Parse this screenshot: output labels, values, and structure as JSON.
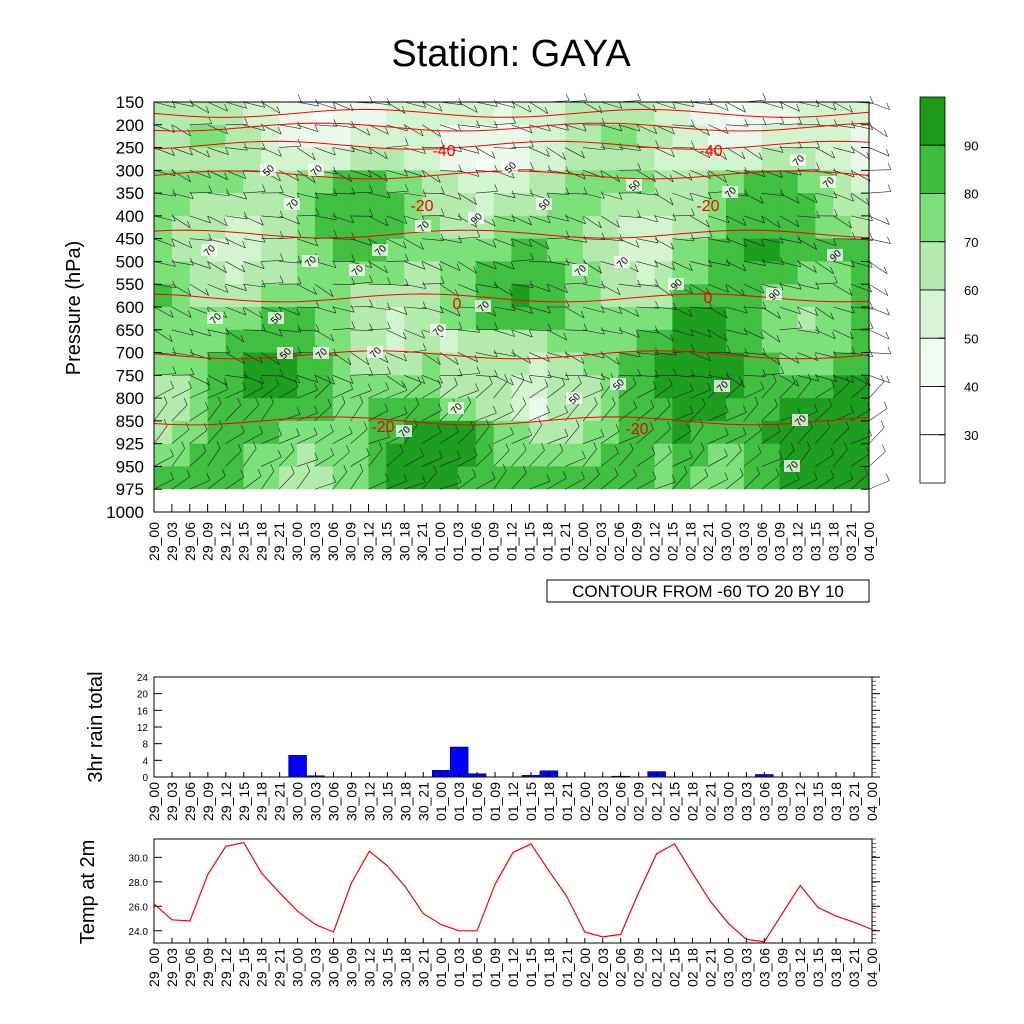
{
  "title": "Station: GAYA",
  "time_labels": [
    "29_00",
    "29_03",
    "29_06",
    "29_09",
    "29_12",
    "29_15",
    "29_18",
    "29_21",
    "30_00",
    "30_03",
    "30_06",
    "30_09",
    "30_12",
    "30_15",
    "30_18",
    "30_21",
    "01_00",
    "01_03",
    "01_06",
    "01_09",
    "01_12",
    "01_15",
    "01_18",
    "01_21",
    "02_00",
    "02_03",
    "02_06",
    "02_09",
    "02_12",
    "02_15",
    "02_18",
    "02_21",
    "03_00",
    "03_03",
    "03_06",
    "03_09",
    "03_12",
    "03_15",
    "03_18",
    "03_21",
    "04_00"
  ],
  "cross_section": {
    "ylabel": "Pressure (hPa)",
    "pressure_levels": [
      "150",
      "200",
      "250",
      "300",
      "350",
      "400",
      "450",
      "500",
      "550",
      "600",
      "650",
      "700",
      "750",
      "800",
      "850",
      "925",
      "950",
      "975",
      "1000"
    ],
    "contour_info": "CONTOUR FROM -60 TO 20 BY 10",
    "colorbar": {
      "labels": [
        "30",
        "40",
        "50",
        "60",
        "70",
        "80",
        "90"
      ],
      "colors": [
        "#ffffff",
        "#f0faf0",
        "#d7f4d4",
        "#b5ebae",
        "#7de07a",
        "#3dbd3d",
        "#199a19"
      ]
    },
    "humidity_labels": [
      "50",
      "70",
      "50",
      "70",
      "70",
      "50",
      "70",
      "50",
      "70",
      "70",
      "70",
      "70",
      "90",
      "70",
      "70",
      "70",
      "70",
      "90",
      "90",
      "90",
      "70",
      "70"
    ],
    "temperature_labels": [
      "-40",
      "-40",
      "-20",
      "-20",
      "0",
      "0",
      "-20",
      "-20"
    ],
    "line_color": "#ff0000"
  },
  "chart_data": [
    {
      "type": "bar",
      "ylabel": "3hr rain total",
      "ylim": [
        0,
        24
      ],
      "yticks": [
        "0",
        "4",
        "8",
        "12",
        "16",
        "20",
        "24"
      ],
      "bar_color": "#0000ff",
      "categories": [
        "29_00",
        "29_03",
        "29_06",
        "29_09",
        "29_12",
        "29_15",
        "29_18",
        "29_21",
        "30_00",
        "30_03",
        "30_06",
        "30_09",
        "30_12",
        "30_15",
        "30_18",
        "30_21",
        "01_00",
        "01_03",
        "01_06",
        "01_09",
        "01_12",
        "01_15",
        "01_18",
        "01_21",
        "02_00",
        "02_03",
        "02_06",
        "02_09",
        "02_12",
        "02_15",
        "02_18",
        "02_21",
        "03_00",
        "03_03",
        "03_06",
        "03_09",
        "03_12",
        "03_15",
        "03_18",
        "03_21",
        "04_00"
      ],
      "values": [
        0,
        0,
        0,
        0,
        0,
        0,
        0,
        0,
        5.2,
        0.3,
        0,
        0,
        0,
        0,
        0,
        0,
        1.6,
        7.2,
        0.8,
        0,
        0,
        0.4,
        1.5,
        0,
        0,
        0,
        0.2,
        0,
        1.3,
        0,
        0,
        0,
        0,
        0,
        0.6,
        0,
        0,
        0,
        0,
        0,
        0
      ]
    },
    {
      "type": "line",
      "ylabel": "Temp at 2m",
      "ylim": [
        23.0,
        31.5
      ],
      "yticks": [
        "24.0",
        "26.0",
        "28.0",
        "30.0"
      ],
      "line_color": "#ff0000",
      "categories": [
        "29_00",
        "29_03",
        "29_06",
        "29_09",
        "29_12",
        "29_15",
        "29_18",
        "29_21",
        "30_00",
        "30_03",
        "30_06",
        "30_09",
        "30_12",
        "30_15",
        "30_18",
        "30_21",
        "01_00",
        "01_03",
        "01_06",
        "01_09",
        "01_12",
        "01_15",
        "01_18",
        "01_21",
        "02_00",
        "02_03",
        "02_06",
        "02_09",
        "02_12",
        "02_15",
        "02_18",
        "02_21",
        "03_00",
        "03_03",
        "03_06",
        "03_09",
        "03_12",
        "03_15",
        "03_18",
        "03_21",
        "04_00"
      ],
      "values": [
        26.2,
        24.9,
        24.8,
        28.6,
        30.9,
        31.2,
        28.7,
        27.1,
        25.6,
        24.5,
        23.9,
        27.9,
        30.5,
        29.3,
        27.6,
        25.4,
        24.5,
        24.0,
        24.0,
        27.8,
        30.4,
        31.1,
        28.9,
        26.8,
        23.9,
        23.5,
        23.7,
        27.1,
        30.3,
        31.1,
        28.7,
        26.4,
        24.6,
        23.3,
        23.1,
        25.4,
        27.7,
        25.9,
        25.2,
        24.7,
        24.1
      ]
    }
  ]
}
